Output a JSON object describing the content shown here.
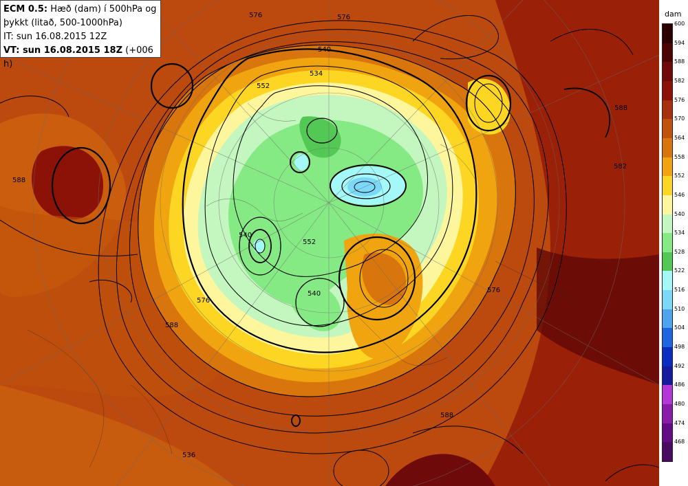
{
  "header": {
    "model": "ECM 0.5:",
    "title_rest": "Hæð (dam) í 500hPa og",
    "title_line2": "þykkt (litað, 500-1000hPa)",
    "it_line": "IT: sun 16.08.2015 12Z",
    "vt_bold": "VT: sun 16.08.2015 18Z",
    "vt_extra": "(+006 h)"
  },
  "legend": {
    "unit": "dam",
    "levels": [
      "600",
      "594",
      "588",
      "582",
      "576",
      "570",
      "564",
      "558",
      "552",
      "546",
      "540",
      "534",
      "528",
      "522",
      "516",
      "510",
      "504",
      "498",
      "492",
      "486",
      "480",
      "474",
      "468"
    ],
    "colors": [
      "#2a0000",
      "#4a0404",
      "#6e0a0a",
      "#8c1208",
      "#a8300e",
      "#c0520c",
      "#d8750c",
      "#f0a410",
      "#fdd623",
      "#fdf69c",
      "#c4f6c0",
      "#86ea84",
      "#54c854",
      "#a4f8f8",
      "#7cd8f8",
      "#4ea4ee",
      "#1c66e0",
      "#0a2cc0",
      "#161a9c",
      "#b438d8",
      "#8a1ca8",
      "#640c88",
      "#4a0a64"
    ]
  },
  "contour_labels": [
    "576",
    "576",
    "552",
    "534",
    "540",
    "582",
    "588",
    "540",
    "552",
    "540",
    "576",
    "588",
    "576",
    "588",
    "588",
    "536"
  ],
  "colors": {
    "outer": "#a0300e",
    "warm": "#c0520c",
    "mid": "#d8750c",
    "orange": "#f0a410",
    "yellow": "#fdd623",
    "pale": "#fdf69c",
    "green": "#c4f6c0",
    "green2": "#86ea84",
    "green3": "#54c854",
    "cyan": "#a4f8f8",
    "blue": "#7cd8f8",
    "dark": "#6e0a0a"
  }
}
